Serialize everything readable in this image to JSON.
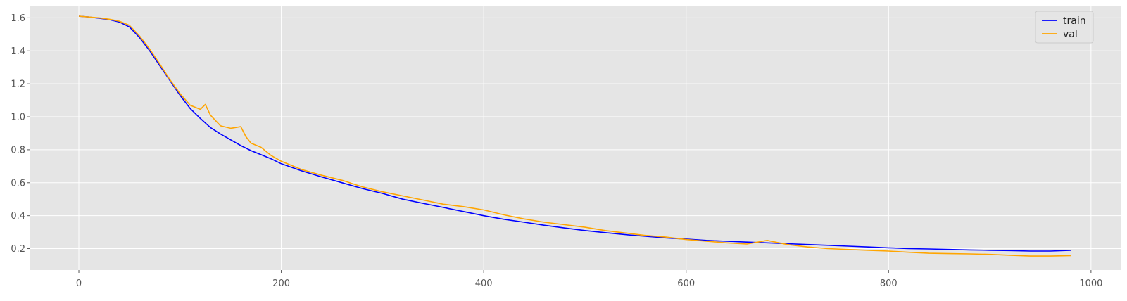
{
  "chart_data": {
    "type": "line",
    "title": "",
    "xlabel": "",
    "ylabel": "",
    "xlim": [
      -48,
      1030
    ],
    "ylim": [
      0.07,
      1.67
    ],
    "grid": true,
    "legend_position": "top-right",
    "x_ticks": [
      0,
      200,
      400,
      600,
      800,
      1000
    ],
    "y_ticks": [
      0.2,
      0.4,
      0.6,
      0.8,
      1.0,
      1.2,
      1.4,
      1.6
    ],
    "x_tick_labels": [
      "0",
      "200",
      "400",
      "600",
      "800",
      "1000"
    ],
    "y_tick_labels": [
      "0.2",
      "0.4",
      "0.6",
      "0.8",
      "1.0",
      "1.2",
      "1.4",
      "1.6"
    ],
    "series": [
      {
        "name": "train",
        "color": "#0000ff",
        "x": [
          0,
          10,
          20,
          30,
          40,
          50,
          60,
          70,
          80,
          90,
          100,
          110,
          120,
          130,
          140,
          150,
          160,
          170,
          180,
          190,
          200,
          220,
          240,
          260,
          280,
          300,
          320,
          340,
          360,
          380,
          400,
          420,
          440,
          460,
          480,
          500,
          520,
          540,
          560,
          580,
          600,
          620,
          640,
          660,
          680,
          700,
          720,
          740,
          760,
          780,
          800,
          820,
          840,
          860,
          880,
          900,
          920,
          940,
          960,
          980
        ],
        "values": [
          1.61,
          1.605,
          1.598,
          1.59,
          1.575,
          1.545,
          1.48,
          1.4,
          1.31,
          1.22,
          1.13,
          1.05,
          0.99,
          0.935,
          0.895,
          0.86,
          0.825,
          0.795,
          0.77,
          0.745,
          0.715,
          0.672,
          0.635,
          0.6,
          0.565,
          0.535,
          0.5,
          0.475,
          0.45,
          0.425,
          0.4,
          0.378,
          0.36,
          0.342,
          0.325,
          0.31,
          0.297,
          0.285,
          0.275,
          0.265,
          0.258,
          0.25,
          0.245,
          0.24,
          0.235,
          0.23,
          0.225,
          0.22,
          0.215,
          0.21,
          0.205,
          0.2,
          0.198,
          0.195,
          0.192,
          0.19,
          0.188,
          0.185,
          0.185,
          0.19
        ]
      },
      {
        "name": "val",
        "color": "#ffa500",
        "x": [
          0,
          10,
          20,
          30,
          40,
          50,
          60,
          70,
          80,
          90,
          100,
          110,
          120,
          125,
          130,
          140,
          150,
          160,
          165,
          170,
          180,
          190,
          200,
          220,
          240,
          260,
          280,
          300,
          320,
          340,
          360,
          380,
          400,
          420,
          440,
          460,
          480,
          500,
          520,
          540,
          560,
          580,
          600,
          620,
          640,
          660,
          680,
          700,
          720,
          740,
          760,
          780,
          800,
          820,
          840,
          860,
          880,
          900,
          920,
          940,
          960,
          980
        ],
        "values": [
          1.61,
          1.605,
          1.6,
          1.592,
          1.58,
          1.555,
          1.49,
          1.41,
          1.32,
          1.225,
          1.14,
          1.07,
          1.045,
          1.075,
          1.01,
          0.945,
          0.93,
          0.94,
          0.88,
          0.84,
          0.815,
          0.765,
          0.73,
          0.68,
          0.645,
          0.615,
          0.575,
          0.545,
          0.52,
          0.495,
          0.47,
          0.455,
          0.435,
          0.405,
          0.38,
          0.36,
          0.345,
          0.33,
          0.31,
          0.295,
          0.28,
          0.27,
          0.255,
          0.245,
          0.235,
          0.228,
          0.25,
          0.225,
          0.21,
          0.2,
          0.195,
          0.19,
          0.185,
          0.178,
          0.172,
          0.17,
          0.168,
          0.165,
          0.16,
          0.155,
          0.155,
          0.158
        ]
      }
    ]
  }
}
